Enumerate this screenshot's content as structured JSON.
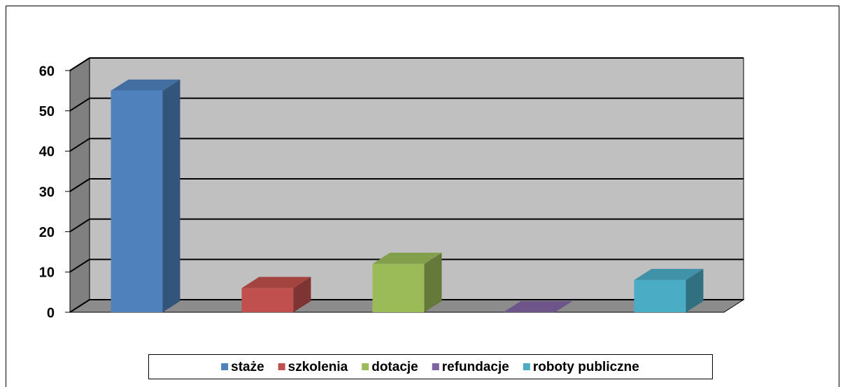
{
  "chart_data": {
    "type": "bar3d",
    "categories": [
      "staże",
      "szkolenia",
      "dotacje",
      "refundacje",
      "roboty publiczne"
    ],
    "values": [
      55,
      6,
      12,
      0,
      8
    ],
    "colors": [
      "#4f81bd",
      "#c0504d",
      "#9bbb59",
      "#8064a2",
      "#4bacc6"
    ],
    "ylim": [
      0,
      60
    ],
    "yticks": [
      0,
      10,
      20,
      30,
      40,
      50,
      60
    ],
    "grid": true,
    "legend": "bottom"
  }
}
